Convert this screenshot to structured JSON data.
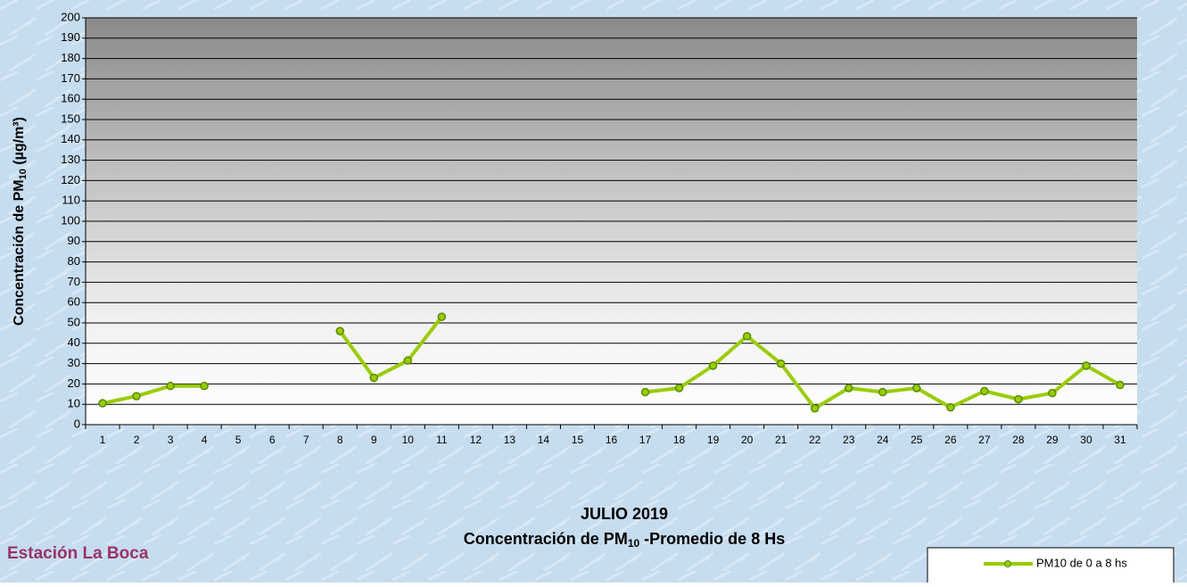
{
  "chart_data": {
    "type": "line",
    "title": {
      "line1": "JULIO 2019",
      "line2_main": "Concentración de PM",
      "line2_sub": "10",
      "line2_rest": " -Promedio de 8 Hs"
    },
    "y_label": {
      "main": "Concentración de PM",
      "sub": "10",
      "rest": " (µg/m³)"
    },
    "station": "Estación La Boca",
    "categories": [
      "1",
      "2",
      "3",
      "4",
      "5",
      "6",
      "7",
      "8",
      "9",
      "10",
      "11",
      "12",
      "13",
      "14",
      "15",
      "16",
      "17",
      "18",
      "19",
      "20",
      "21",
      "22",
      "23",
      "24",
      "25",
      "26",
      "27",
      "28",
      "29",
      "30",
      "31"
    ],
    "series": [
      {
        "name": "PM10 de 0 a 8 hs",
        "color": "#99cc00",
        "values": [
          10.5,
          14,
          19,
          19,
          null,
          null,
          null,
          46,
          23,
          31.5,
          53,
          null,
          null,
          null,
          null,
          null,
          16,
          18,
          29,
          43.5,
          30,
          8,
          18,
          16,
          18,
          8.5,
          16.5,
          12.5,
          15.5,
          29,
          19.5
        ]
      }
    ],
    "ylim": [
      0,
      200
    ],
    "yticks": [
      0,
      10,
      20,
      30,
      40,
      50,
      60,
      70,
      80,
      90,
      100,
      110,
      120,
      130,
      140,
      150,
      160,
      170,
      180,
      190,
      200
    ],
    "grid": true,
    "legend": "bottom-right"
  }
}
